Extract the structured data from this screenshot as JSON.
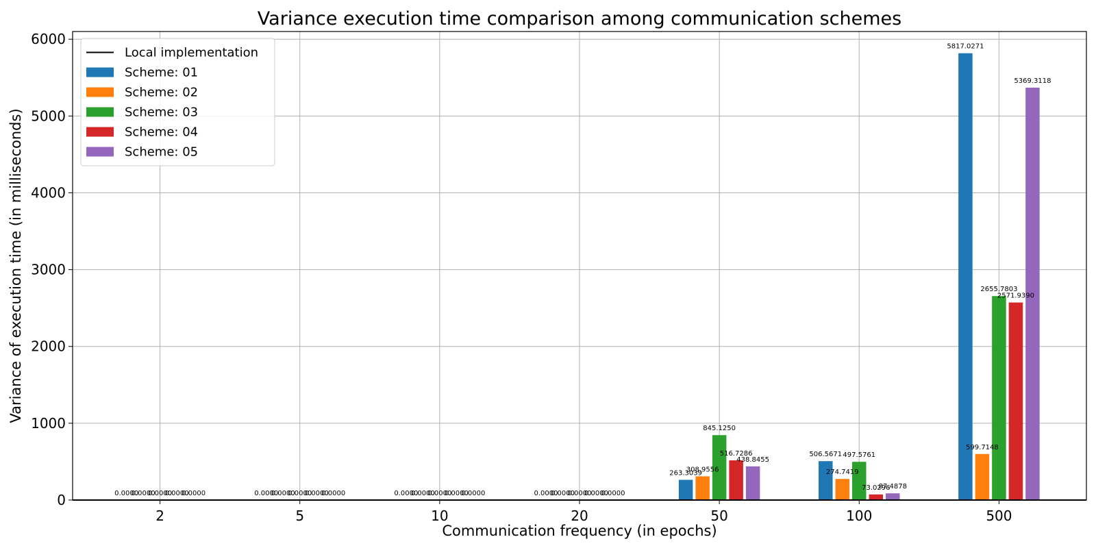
{
  "chart_data": {
    "type": "bar",
    "title": "Variance execution time comparison among communication schemes",
    "xlabel": "Communication frequency (in epochs)",
    "ylabel": "Variance of execution time (in milliseconds)",
    "categories": [
      "2",
      "5",
      "10",
      "20",
      "50",
      "100",
      "500"
    ],
    "ylim": [
      0,
      6100
    ],
    "yticks": [
      0,
      1000,
      2000,
      3000,
      4000,
      5000,
      6000
    ],
    "grid": true,
    "legend_position": "top-left",
    "reference_line": {
      "name": "Local implementation",
      "value": 0,
      "color": "#000000"
    },
    "series": [
      {
        "name": "Scheme: 01",
        "color": "#1f77b4",
        "values": [
          0,
          0,
          0,
          0,
          263.3039,
          506.5671,
          5817.0271
        ],
        "labels": [
          "0.0000",
          "0.0000",
          "0.0000",
          "0.0000",
          "263.3039",
          "506.5671",
          "5817.0271"
        ]
      },
      {
        "name": "Scheme: 02",
        "color": "#ff7f0e",
        "values": [
          0,
          0,
          0,
          0,
          308.9556,
          274.7419,
          599.7148
        ],
        "labels": [
          "0.0000",
          "0.0000",
          "0.0000",
          "0.0000",
          "308.9556",
          "274.7419",
          "599.7148"
        ]
      },
      {
        "name": "Scheme: 03",
        "color": "#2ca02c",
        "values": [
          0,
          0,
          0,
          0,
          845.125,
          497.5761,
          2655.7803
        ],
        "labels": [
          "0.0000",
          "0.0000",
          "0.0000",
          "0.0000",
          "845.1250",
          "497.5761",
          "2655.7803"
        ]
      },
      {
        "name": "Scheme: 04",
        "color": "#d62728",
        "values": [
          0,
          0,
          0,
          0,
          516.7286,
          73.0296,
          2571.939
        ],
        "labels": [
          "0.0000",
          "0.0000",
          "0.0000",
          "0.0000",
          "516.7286",
          "73.0296",
          "2571.9390"
        ]
      },
      {
        "name": "Scheme: 05",
        "color": "#9467bd",
        "values": [
          0,
          0,
          0,
          0,
          438.8455,
          87.4878,
          5369.3118
        ],
        "labels": [
          "0.0000",
          "0.0000",
          "0.0000",
          "0.0000",
          "438.8455",
          "87.4878",
          "5369.3118"
        ]
      }
    ]
  }
}
